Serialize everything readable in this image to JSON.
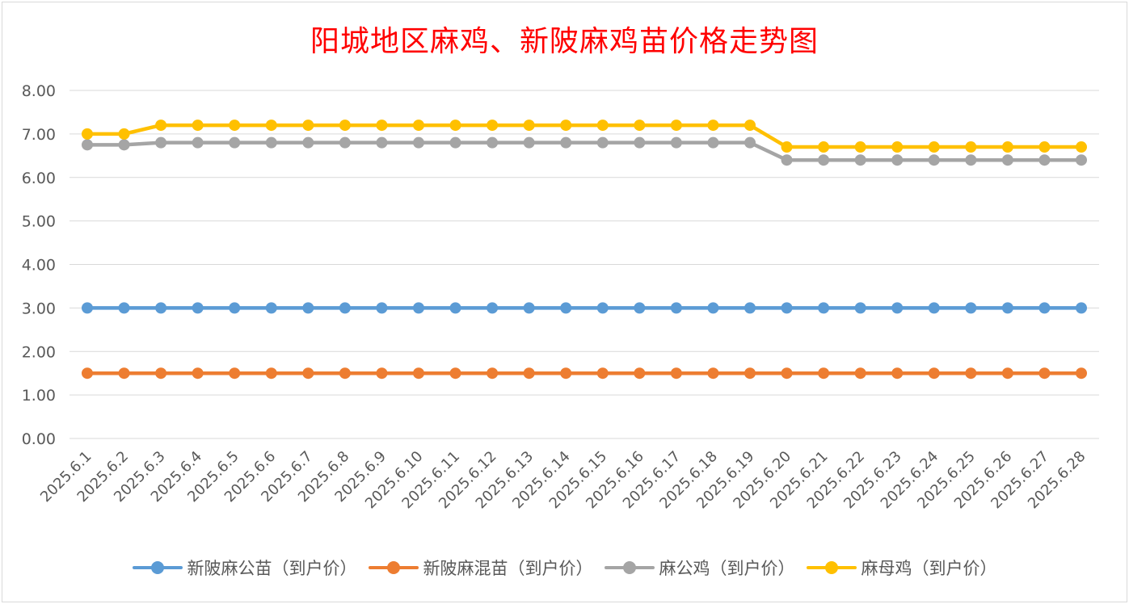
{
  "chart_data": {
    "type": "line",
    "title": "阳城地区麻鸡、新陂麻鸡苗价格走势图",
    "categories": [
      "2025.6.1",
      "2025.6.2",
      "2025.6.3",
      "2025.6.4",
      "2025.6.5",
      "2025.6.6",
      "2025.6.7",
      "2025.6.8",
      "2025.6.9",
      "2025.6.10",
      "2025.6.11",
      "2025.6.12",
      "2025.6.13",
      "2025.6.14",
      "2025.6.15",
      "2025.6.16",
      "2025.6.17",
      "2025.6.18",
      "2025.6.19",
      "2025.6.20",
      "2025.6.21",
      "2025.6.22",
      "2025.6.23",
      "2025.6.24",
      "2025.6.25",
      "2025.6.26",
      "2025.6.27",
      "2025.6.28"
    ],
    "y_ticks": [
      "0.00",
      "1.00",
      "2.00",
      "3.00",
      "4.00",
      "5.00",
      "6.00",
      "7.00",
      "8.00"
    ],
    "ylim": [
      0,
      8
    ],
    "grid": true,
    "legend_position": "bottom",
    "series": [
      {
        "name": "新陂麻公苗（到户价）",
        "color": "#5b9bd5",
        "values": [
          3,
          3,
          3,
          3,
          3,
          3,
          3,
          3,
          3,
          3,
          3,
          3,
          3,
          3,
          3,
          3,
          3,
          3,
          3,
          3,
          3,
          3,
          3,
          3,
          3,
          3,
          3,
          3
        ]
      },
      {
        "name": "新陂麻混苗（到户价）",
        "color": "#ed7d31",
        "values": [
          1.5,
          1.5,
          1.5,
          1.5,
          1.5,
          1.5,
          1.5,
          1.5,
          1.5,
          1.5,
          1.5,
          1.5,
          1.5,
          1.5,
          1.5,
          1.5,
          1.5,
          1.5,
          1.5,
          1.5,
          1.5,
          1.5,
          1.5,
          1.5,
          1.5,
          1.5,
          1.5,
          1.5
        ]
      },
      {
        "name": "麻公鸡（到户价）",
        "color": "#a5a5a5",
        "values": [
          6.75,
          6.75,
          6.8,
          6.8,
          6.8,
          6.8,
          6.8,
          6.8,
          6.8,
          6.8,
          6.8,
          6.8,
          6.8,
          6.8,
          6.8,
          6.8,
          6.8,
          6.8,
          6.8,
          6.4,
          6.4,
          6.4,
          6.4,
          6.4,
          6.4,
          6.4,
          6.4,
          6.4
        ]
      },
      {
        "name": "麻母鸡（到户价）",
        "color": "#ffc000",
        "values": [
          7.0,
          7.0,
          7.2,
          7.2,
          7.2,
          7.2,
          7.2,
          7.2,
          7.2,
          7.2,
          7.2,
          7.2,
          7.2,
          7.2,
          7.2,
          7.2,
          7.2,
          7.2,
          7.2,
          6.7,
          6.7,
          6.7,
          6.7,
          6.7,
          6.7,
          6.7,
          6.7,
          6.7
        ]
      }
    ]
  }
}
